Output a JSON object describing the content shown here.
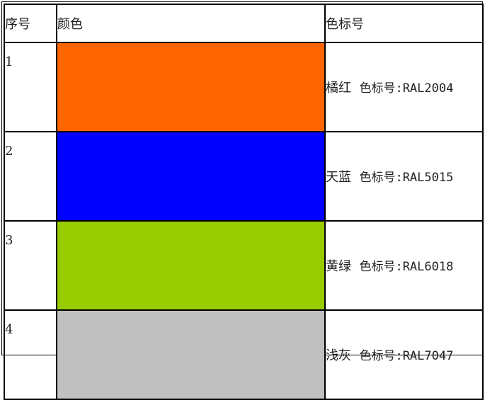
{
  "headers": {
    "index": "序号",
    "color": "颜色",
    "code": "色标号"
  },
  "rows": [
    {
      "index": "1",
      "swatch": "#FF6600",
      "name": "橘红",
      "label": "色标号:RAL2004"
    },
    {
      "index": "2",
      "swatch": "#0000FF",
      "name": "天蓝",
      "label": "色标号:RAL5015"
    },
    {
      "index": "3",
      "swatch": "#99CC00",
      "name": "黄绿",
      "label": "色标号:RAL6018"
    },
    {
      "index": "4",
      "swatch": "#C0C0C0",
      "name": "浅灰",
      "label": "色标号:RAL7047"
    }
  ]
}
